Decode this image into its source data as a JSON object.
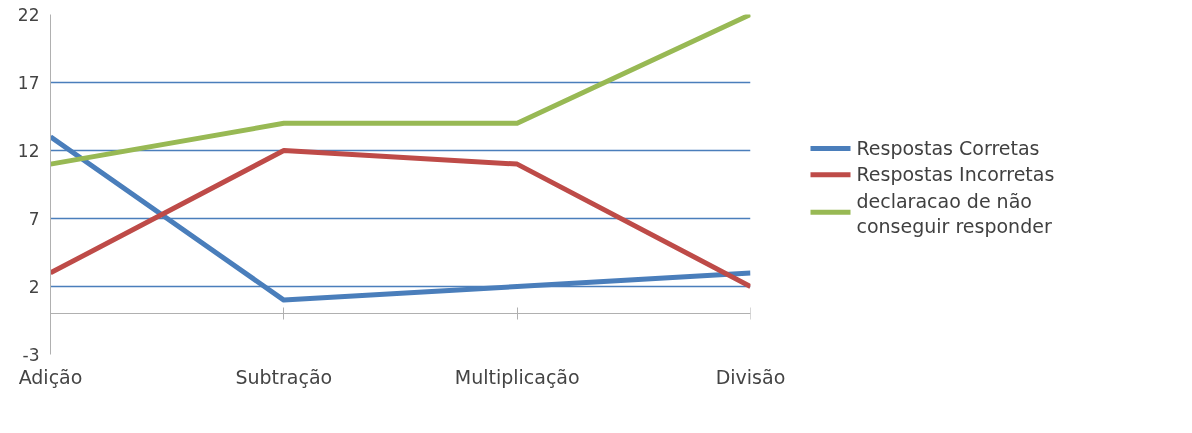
{
  "chart_data": {
    "type": "line",
    "categories": [
      "Adição",
      "Subtração",
      "Multiplicação",
      "Divisão"
    ],
    "series": [
      {
        "name": "Respostas Corretas",
        "color": "#4a7ebb",
        "values": [
          13,
          1,
          2,
          3
        ]
      },
      {
        "name": "Respostas Incorretas",
        "color": "#be4b48",
        "values": [
          3,
          12,
          11,
          2
        ]
      },
      {
        "name": "declaracao de não conseguir responder",
        "color": "#98b954",
        "values": [
          11,
          14,
          14,
          22
        ]
      }
    ],
    "ylim": [
      -3,
      22
    ],
    "yticks": [
      -3,
      2,
      7,
      12,
      17,
      22
    ],
    "grid": "y",
    "legend": "right",
    "marker": "none",
    "line_style": "solid"
  }
}
